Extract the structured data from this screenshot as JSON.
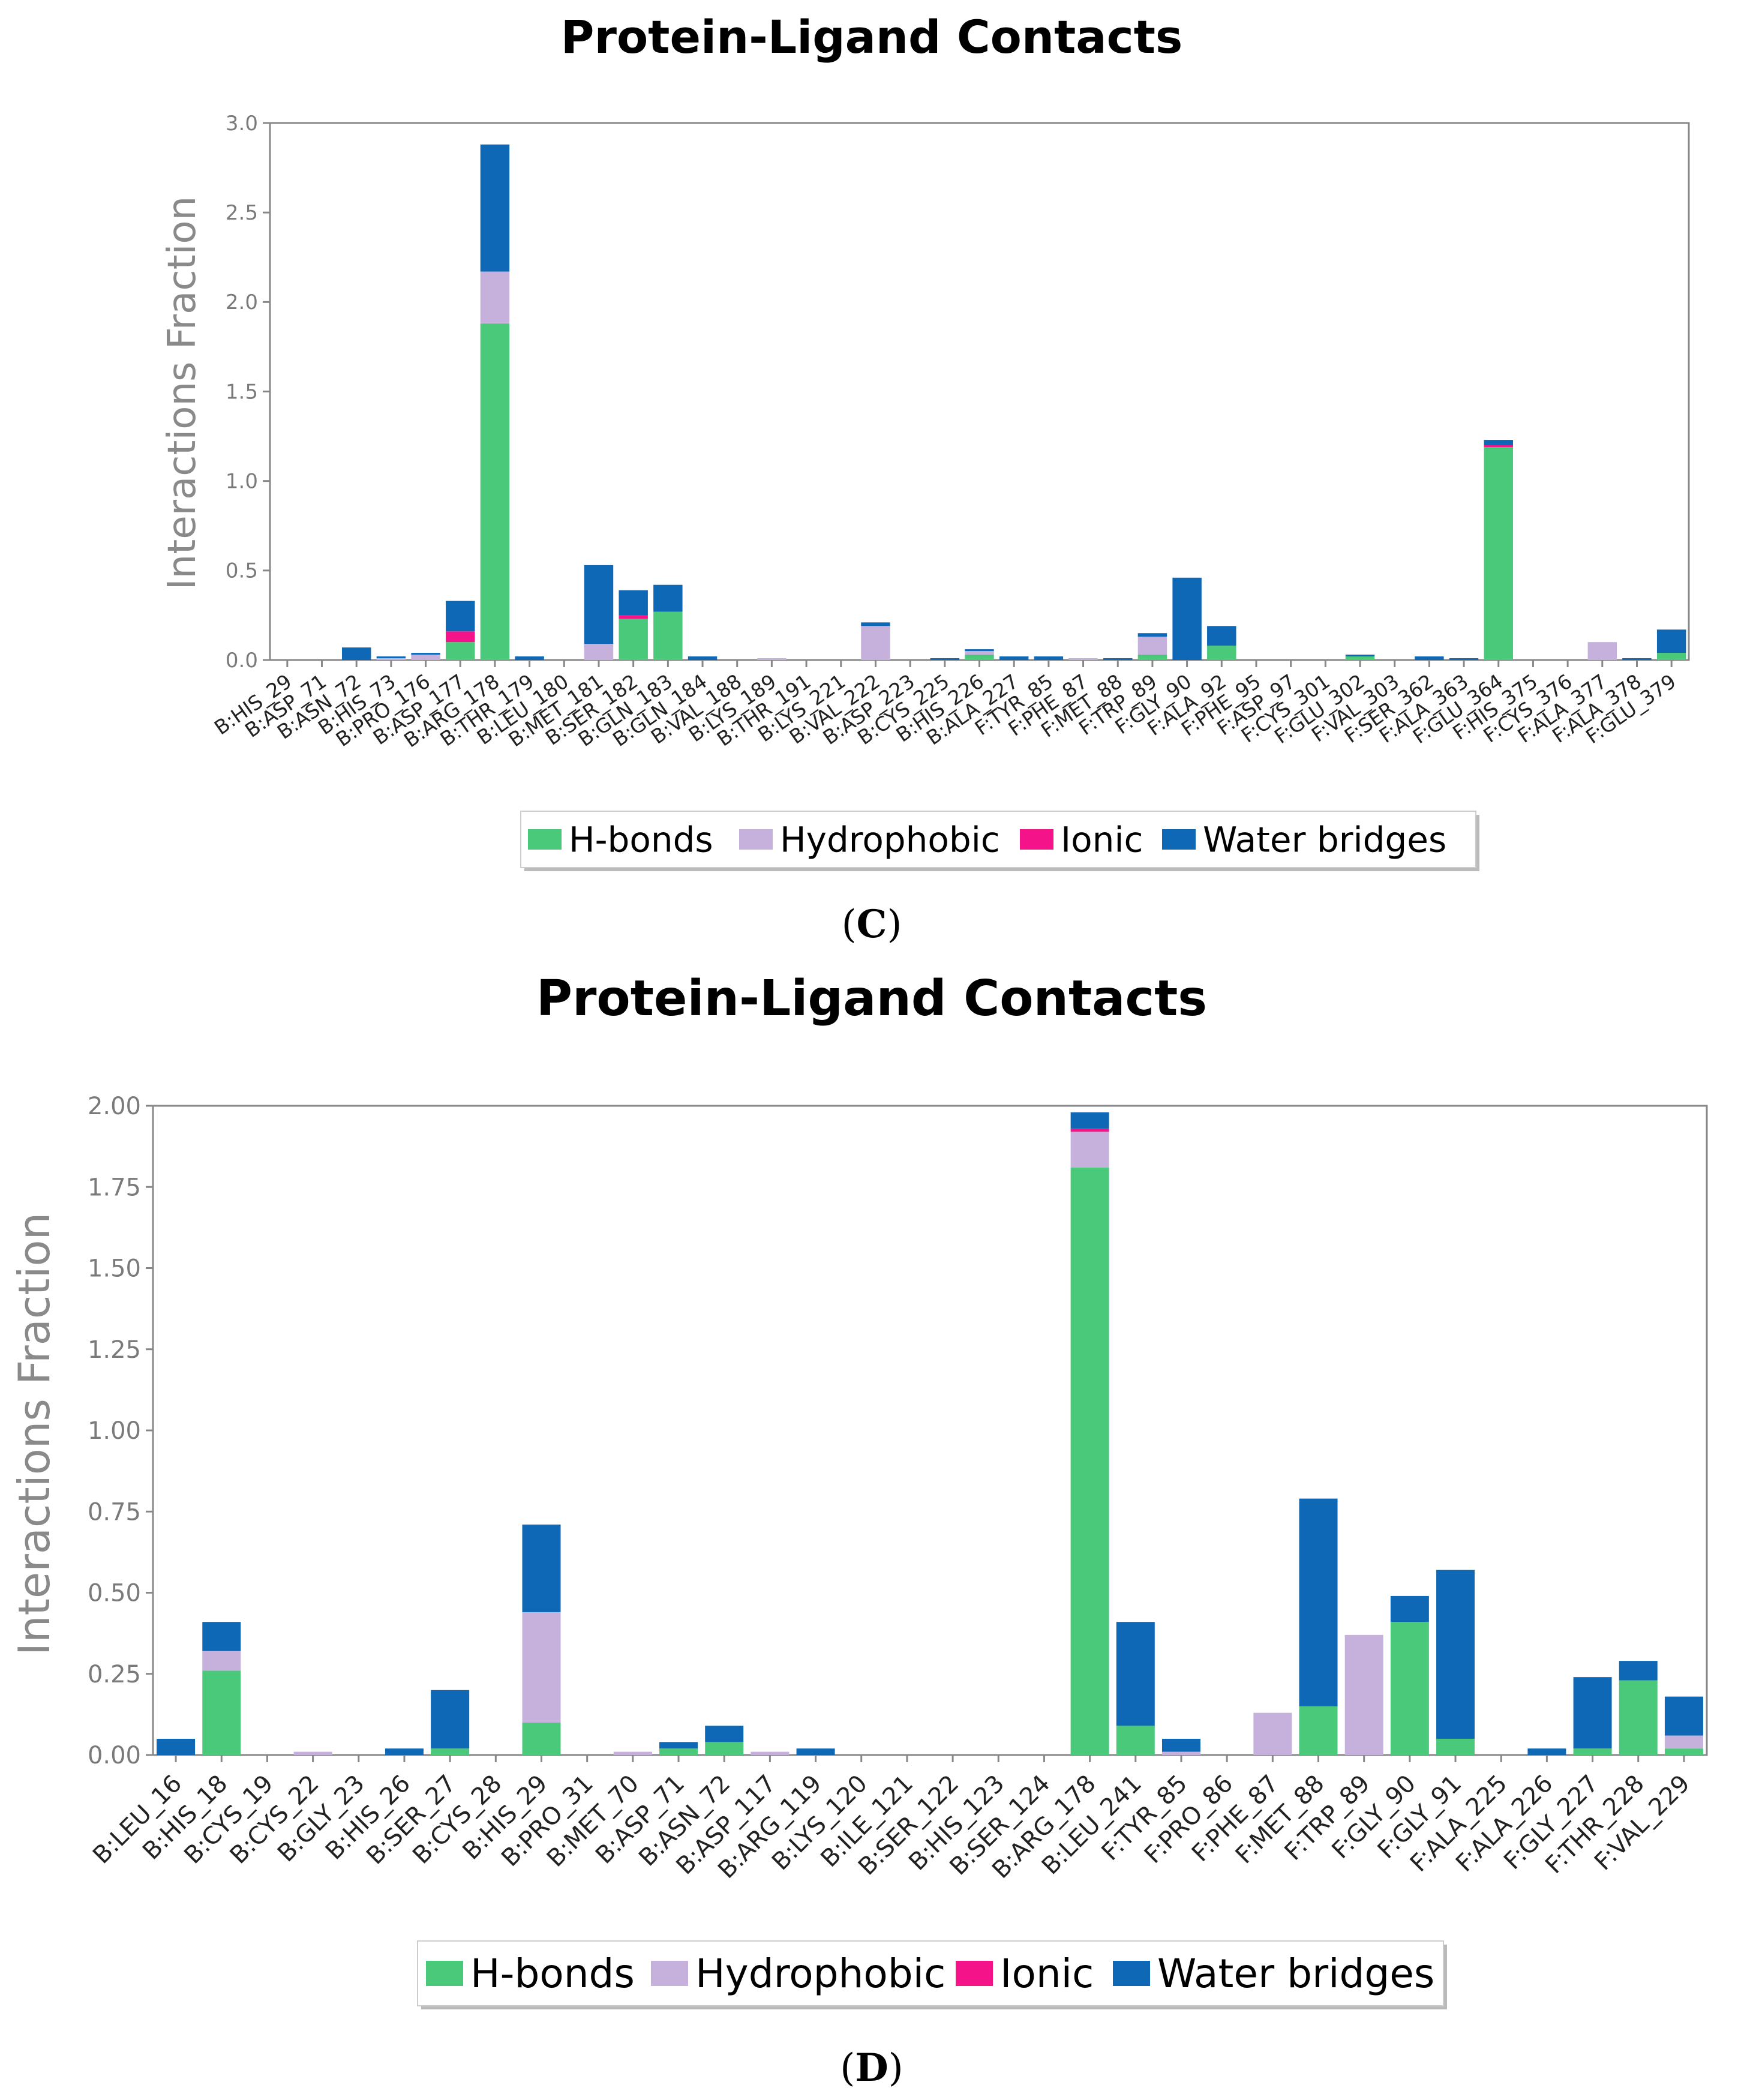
{
  "colors": {
    "hbonds": "#4ac97a",
    "hydrophobic": "#c5b1dc",
    "ionic": "#f5138a",
    "water_bridges": "#0e68b6",
    "frame": "#888888"
  },
  "chart_data": [
    {
      "type": "bar",
      "stacked": true,
      "title": "Protein-Ligand Contacts",
      "panel_label": "C",
      "ylabel": "Interactions Fraction",
      "ylim": [
        0,
        3.0
      ],
      "yticks": [
        "0.0",
        "0.5",
        "1.0",
        "1.5",
        "2.0",
        "2.5",
        "3.0"
      ],
      "categories": [
        "B:HIS_29",
        "B:ASP_71",
        "B:ASN_72",
        "B:HIS_73",
        "B:PRO_176",
        "B:ASP_177",
        "B:ARG_178",
        "B:THR_179",
        "B:LEU_180",
        "B:MET_181",
        "B:SER_182",
        "B:GLN_183",
        "B:GLN_184",
        "B:VAL_188",
        "B:LYS_189",
        "B:THR_191",
        "B:LYS_221",
        "B:VAL_222",
        "B:ASP_223",
        "B:CYS_225",
        "B:HIS_226",
        "B:ALA_227",
        "F:TYR_85",
        "F:PHE_87",
        "F:MET_88",
        "F:TRP_89",
        "F:GLY_90",
        "F:ALA_92",
        "F:PHE_95",
        "F:ASP_97",
        "F:CYS_301",
        "F:GLU_302",
        "F:VAL_303",
        "F:SER_362",
        "F:ALA_363",
        "F:GLU_364",
        "F:HIS_375",
        "F:CYS_376",
        "F:ALA_377",
        "F:ALA_378",
        "F:GLU_379"
      ],
      "series": [
        {
          "name": "H-bonds",
          "values": [
            0,
            0,
            0,
            0,
            0,
            0.1,
            1.88,
            0,
            0,
            0,
            0.23,
            0.27,
            0,
            0,
            0,
            0,
            0,
            0,
            0,
            0,
            0.03,
            0,
            0,
            0,
            0,
            0.03,
            0,
            0.08,
            0,
            0,
            0,
            0.02,
            0,
            0,
            0,
            1.19,
            0,
            0,
            0,
            0,
            0.04
          ]
        },
        {
          "name": "Hydrophobic",
          "values": [
            0,
            0,
            0,
            0.01,
            0.03,
            0,
            0.29,
            0,
            0,
            0.09,
            0,
            0,
            0,
            0,
            0.01,
            0,
            0,
            0.19,
            0,
            0,
            0.02,
            0,
            0,
            0.01,
            0,
            0.1,
            0,
            0,
            0,
            0,
            0,
            0,
            0,
            0,
            0,
            0,
            0,
            0,
            0.1,
            0,
            0
          ]
        },
        {
          "name": "Ionic",
          "values": [
            0,
            0,
            0,
            0,
            0,
            0.06,
            0,
            0,
            0,
            0,
            0.02,
            0,
            0,
            0,
            0,
            0,
            0,
            0,
            0,
            0,
            0,
            0,
            0,
            0,
            0,
            0,
            0,
            0,
            0,
            0,
            0,
            0,
            0,
            0,
            0,
            0.01,
            0,
            0,
            0,
            0,
            0
          ]
        },
        {
          "name": "Water bridges",
          "values": [
            0,
            0,
            0.07,
            0.01,
            0.01,
            0.17,
            0.71,
            0.02,
            0,
            0.44,
            0.14,
            0.15,
            0.02,
            0,
            0,
            0,
            0,
            0.02,
            0,
            0.01,
            0.01,
            0.02,
            0.02,
            0,
            0.01,
            0.02,
            0.46,
            0.11,
            0,
            0,
            0,
            0.01,
            0,
            0.02,
            0.01,
            0.03,
            0,
            0,
            0,
            0.01,
            0.13
          ]
        }
      ],
      "legend": [
        "H-bonds",
        "Hydrophobic",
        "Ionic",
        "Water bridges"
      ]
    },
    {
      "type": "bar",
      "stacked": true,
      "title": "Protein-Ligand Contacts",
      "panel_label": "D",
      "ylabel": "Interactions Fraction",
      "ylim": [
        0,
        2.0
      ],
      "yticks": [
        "0.00",
        "0.25",
        "0.50",
        "0.75",
        "1.00",
        "1.25",
        "1.50",
        "1.75",
        "2.00"
      ],
      "categories": [
        "B:LEU_16",
        "B:HIS_18",
        "B:CYS_19",
        "B:CYS_22",
        "B:GLY_23",
        "B:HIS_26",
        "B:SER_27",
        "B:CYS_28",
        "B:HIS_29",
        "B:PRO_31",
        "B:MET_70",
        "B:ASP_71",
        "B:ASN_72",
        "B:ASP_117",
        "B:ARG_119",
        "B:LYS_120",
        "B:ILE_121",
        "B:SER_122",
        "B:HIS_123",
        "B:SER_124",
        "B:ARG_178",
        "B:LEU_241",
        "F:TYR_85",
        "F:PRO_86",
        "F:PHE_87",
        "F:MET_88",
        "F:TRP_89",
        "F:GLY_90",
        "F:GLY_91",
        "F:ALA_225",
        "F:ALA_226",
        "F:GLY_227",
        "F:THR_228",
        "F:VAL_229"
      ],
      "series": [
        {
          "name": "H-bonds",
          "values": [
            0,
            0.26,
            0,
            0,
            0,
            0,
            0.02,
            0,
            0.1,
            0,
            0,
            0.02,
            0.04,
            0,
            0,
            0,
            0,
            0,
            0,
            0,
            1.81,
            0.09,
            0,
            0,
            0,
            0.15,
            0,
            0.41,
            0.05,
            0,
            0,
            0.02,
            0.23,
            0.02
          ]
        },
        {
          "name": "Hydrophobic",
          "values": [
            0,
            0.06,
            0,
            0.01,
            0,
            0,
            0,
            0,
            0.34,
            0,
            0.01,
            0,
            0,
            0.01,
            0,
            0,
            0,
            0,
            0,
            0,
            0.11,
            0,
            0.01,
            0,
            0.13,
            0,
            0.37,
            0,
            0,
            0,
            0,
            0,
            0,
            0.04
          ]
        },
        {
          "name": "Ionic",
          "values": [
            0,
            0,
            0,
            0,
            0,
            0,
            0,
            0,
            0,
            0,
            0,
            0,
            0,
            0,
            0,
            0,
            0,
            0,
            0,
            0,
            0.01,
            0,
            0,
            0,
            0,
            0,
            0,
            0,
            0,
            0,
            0,
            0,
            0,
            0
          ]
        },
        {
          "name": "Water bridges",
          "values": [
            0.05,
            0.09,
            0,
            0,
            0,
            0.02,
            0.18,
            0,
            0.27,
            0,
            0,
            0.02,
            0.05,
            0,
            0.02,
            0,
            0,
            0,
            0,
            0,
            0.05,
            0.32,
            0.04,
            0,
            0,
            0.64,
            0,
            0.08,
            0.52,
            0,
            0.02,
            0.22,
            0.06,
            0.12
          ]
        }
      ],
      "legend": [
        "H-bonds",
        "Hydrophobic",
        "Ionic",
        "Water bridges"
      ]
    }
  ]
}
